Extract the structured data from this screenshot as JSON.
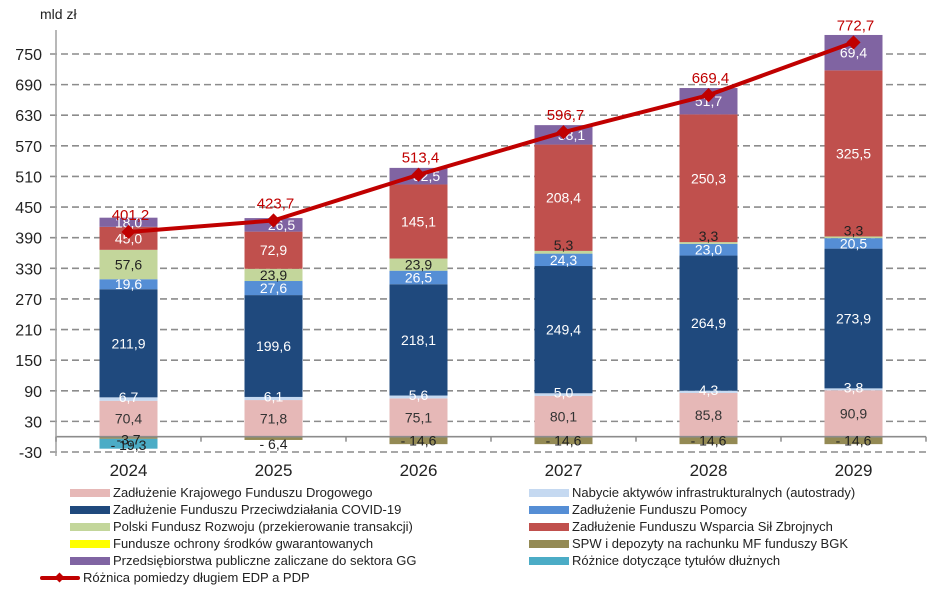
{
  "chart_data": {
    "type": "bar",
    "stacked": true,
    "unit_label": "mld zł",
    "title": "",
    "xlabel": "",
    "ylabel": "mld zł",
    "ylim": [
      -30,
      780
    ],
    "yticks": [
      -30,
      30,
      90,
      150,
      210,
      270,
      330,
      390,
      450,
      510,
      570,
      630,
      690,
      750
    ],
    "grid": true,
    "legend_position": "bottom",
    "categories": [
      "2024",
      "2025",
      "2026",
      "2027",
      "2028",
      "2029"
    ],
    "series": [
      {
        "name": "Zadłużenie Krajowego Funduszu Drogowego",
        "color": "#e6b8b7",
        "label_color": "#333333",
        "values": [
          70.4,
          71.8,
          75.1,
          80.1,
          85.8,
          90.9
        ]
      },
      {
        "name": "Nabycie aktywów infrastrukturalnych (autostrady)",
        "color": "#c5d9f1",
        "label_color": "#ffffff",
        "values": [
          6.7,
          6.1,
          5.6,
          5.0,
          4.3,
          3.8
        ]
      },
      {
        "name": "Zadłużenie Funduszu Przeciwdziałania COVID-19",
        "color": "#1f497d",
        "label_color": "#ffffff",
        "values": [
          211.9,
          199.6,
          218.1,
          249.4,
          264.9,
          273.9
        ]
      },
      {
        "name": "Zadłużenie Funduszu Pomocy",
        "color": "#558ed5",
        "label_color": "#ffffff",
        "values": [
          19.6,
          27.6,
          26.5,
          24.3,
          23.0,
          20.5
        ]
      },
      {
        "name": "Polski Fundusz Rozwoju (przekierowanie transakcji)",
        "color": "#c3d69b",
        "label_color": "#222222",
        "values": [
          57.6,
          23.9,
          23.9,
          5.3,
          3.3,
          3.3
        ]
      },
      {
        "name": "Zadłużenie Funduszu Wsparcia Sił Zbrojnych",
        "color": "#c0504d",
        "label_color": "#ffffff",
        "values": [
          45.0,
          72.9,
          145.1,
          208.4,
          250.3,
          325.5
        ]
      },
      {
        "name": "Przedsiębiorstwa publiczne zaliczane do sektora GG",
        "color": "#8064a2",
        "label_color": "#ffffff",
        "values": [
          18.0,
          26.5,
          32.5,
          38.1,
          51.7,
          69.4
        ]
      },
      {
        "name": "Fundusze ochrony środków gwarantowanych",
        "color": "#ffff00",
        "label_color": "#222222",
        "values": [
          -0.5,
          0,
          0,
          0,
          0,
          0
        ]
      },
      {
        "name": "SPW i depozyty na rachunku MF funduszy BGK",
        "color": "#948a54",
        "label_color": "#222222",
        "values": [
          -3.7,
          -6.4,
          -14.6,
          -14.6,
          -14.6,
          -14.6
        ]
      },
      {
        "name": "Różnice dotyczące tytułów dłużnych",
        "color": "#4bacc6",
        "label_color": "#222222",
        "values": [
          -19.3,
          0,
          0,
          0,
          0,
          0
        ]
      }
    ],
    "bar_labels": [
      [
        "70,4",
        "71,8",
        "75,1",
        "80,1",
        "85,8",
        "90,9"
      ],
      [
        "6,7",
        "6,1",
        "5,6",
        "5,0",
        "4,3",
        "3,8"
      ],
      [
        "211,9",
        "199,6",
        "218,1",
        "249,4",
        "264,9",
        "273,9"
      ],
      [
        "19,6",
        "27,6",
        "26,5",
        "24,3",
        "23,0",
        "20,5"
      ],
      [
        "57,6",
        "23,9",
        "23,9",
        "5,3",
        "3,3",
        "3,3"
      ],
      [
        "45,0",
        "72,9",
        "145,1",
        "208,4",
        "250,3",
        "325,5"
      ],
      [
        "18,0",
        "26,5",
        "32,5",
        "38,1",
        "51,7",
        "69,4"
      ],
      [
        "",
        "",
        "",
        "",
        "",
        ""
      ],
      [
        "-3,7",
        "- 6,4",
        "- 14,6",
        "- 14,6",
        "- 14,6",
        "- 14,6"
      ],
      [
        "- 19,3",
        "",
        "",
        "",
        "",
        ""
      ]
    ],
    "line_series": {
      "name": "Różnica pomiedzy długiem EDP a PDP",
      "color": "#c00000",
      "values": [
        401.2,
        423.7,
        513.4,
        596.7,
        669.4,
        772.7
      ],
      "labels": [
        "401,2",
        "423,7",
        "513,4",
        "596,7",
        "669,4",
        "772,7"
      ]
    }
  },
  "legend": {
    "left": [
      {
        "label": "Zadłużenie Krajowego Funduszu Drogowego",
        "color": "#e6b8b7"
      },
      {
        "label": "Zadłużenie Funduszu Przeciwdziałania COVID-19",
        "color": "#1f497d"
      },
      {
        "label": "Polski Fundusz Rozwoju (przekierowanie transakcji)",
        "color": "#c3d69b"
      },
      {
        "label": "Fundusze ochrony środków gwarantowanych",
        "color": "#ffff00"
      },
      {
        "label": "Przedsiębiorstwa publiczne zaliczane do sektora GG",
        "color": "#8064a2"
      },
      {
        "label": "Różnica pomiedzy długiem EDP a PDP",
        "color": "#c00000"
      }
    ],
    "right": [
      {
        "label": "Nabycie aktywów infrastrukturalnych (autostrady)",
        "color": "#c5d9f1"
      },
      {
        "label": "Zadłużenie Funduszu Pomocy",
        "color": "#558ed5"
      },
      {
        "label": "Zadłużenie Funduszu Wsparcia Sił Zbrojnych",
        "color": "#c0504d"
      },
      {
        "label": "SPW i depozyty na rachunku MF funduszy BGK",
        "color": "#948a54"
      },
      {
        "label": "Różnice dotyczące tytułów dłużnych",
        "color": "#4bacc6"
      }
    ]
  }
}
